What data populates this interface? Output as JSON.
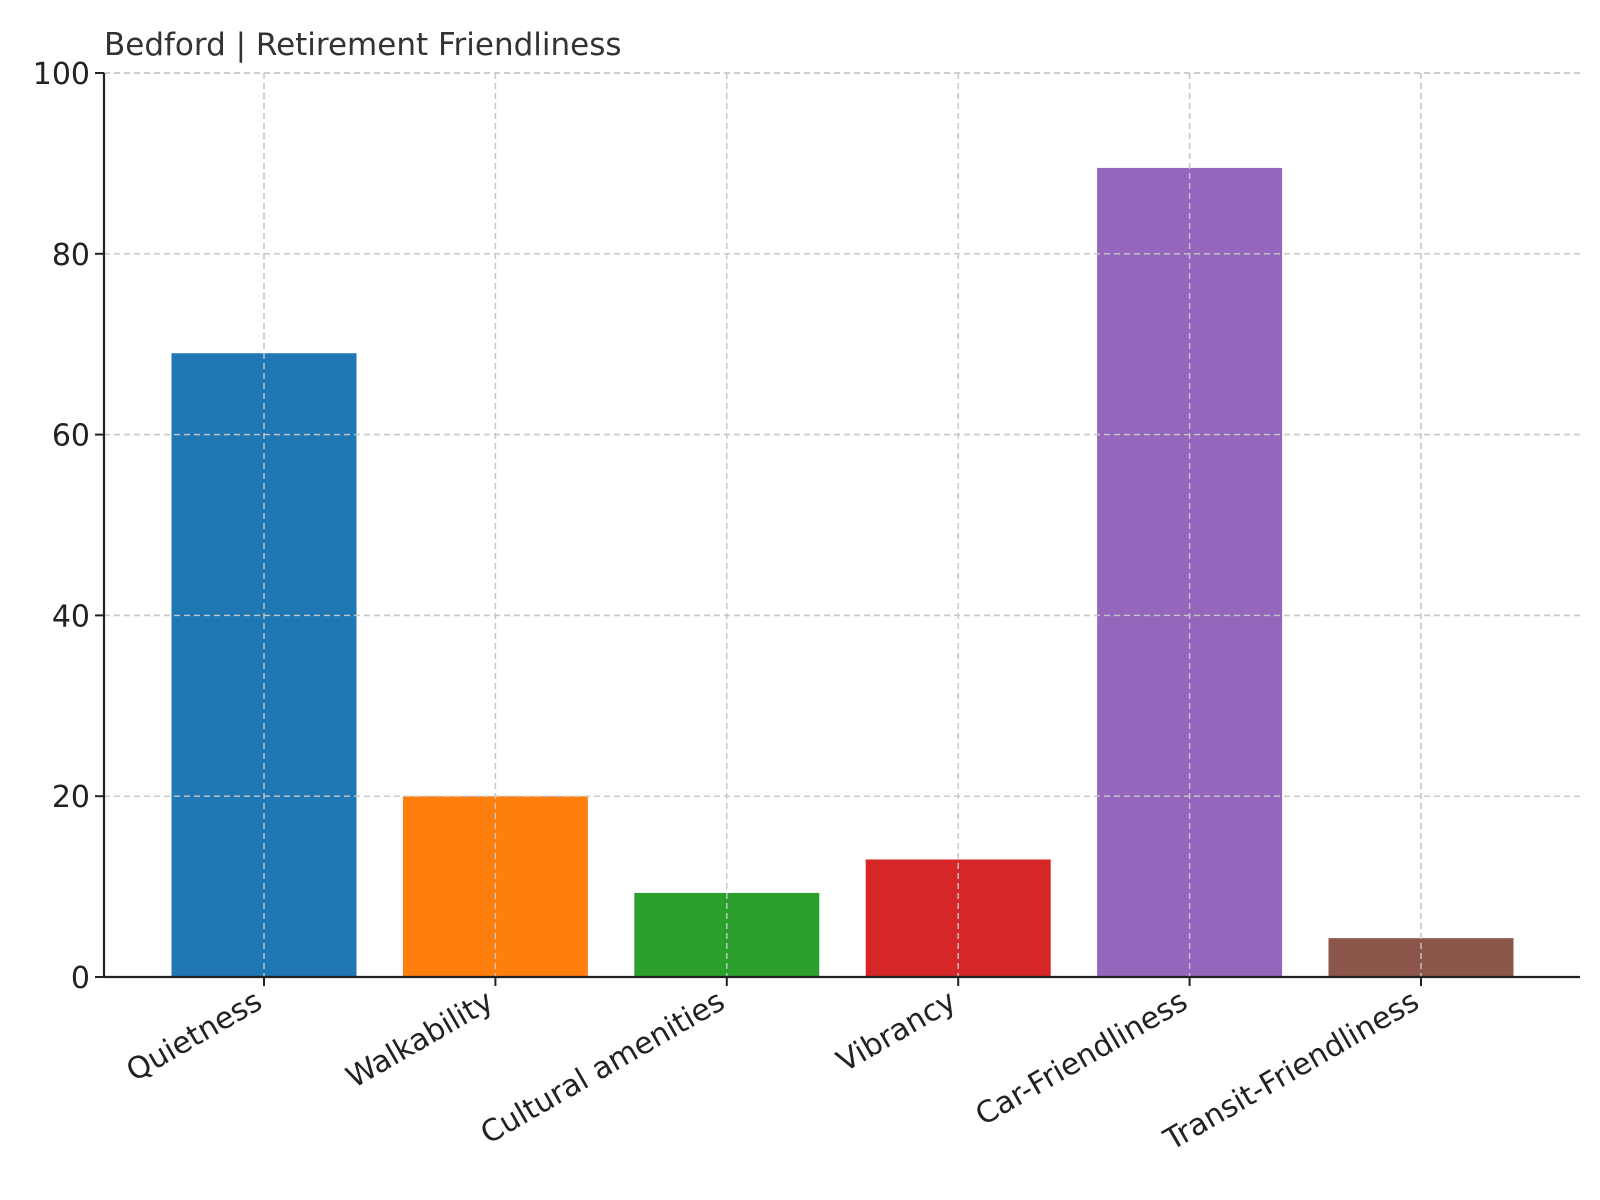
{
  "chart_data": {
    "type": "bar",
    "title": "Bedford | Retirement Friendliness",
    "xlabel": "",
    "ylabel": "",
    "categories": [
      "Quietness",
      "Walkability",
      "Cultural amenities",
      "Vibrancy",
      "Car-Friendliness",
      "Transit-Friendliness"
    ],
    "values": [
      69,
      20,
      9.3,
      13,
      89.5,
      4.3
    ],
    "colors": [
      "#1f77b4",
      "#ff7f0e",
      "#2ca02c",
      "#d62728",
      "#9467bd",
      "#8c564b"
    ],
    "ylim": [
      0,
      100
    ],
    "yticks": [
      "0",
      "20",
      "40",
      "60",
      "80",
      "100"
    ],
    "grid": true,
    "legend": "none"
  }
}
